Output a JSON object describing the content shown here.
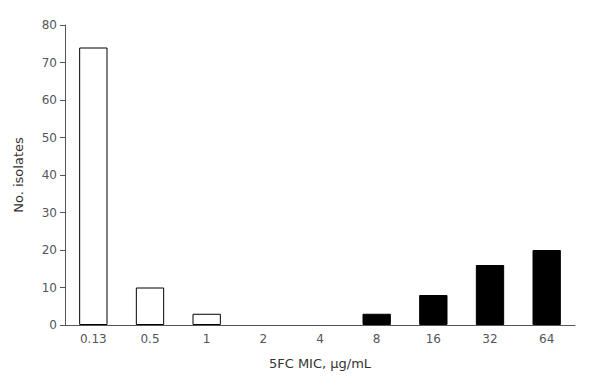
{
  "chart_data": {
    "type": "bar",
    "categories": [
      "0.13",
      "0.5",
      "1",
      "2",
      "4",
      "8",
      "16",
      "32",
      "64"
    ],
    "values": [
      74,
      10,
      3,
      0,
      0,
      3,
      8,
      16,
      20
    ],
    "colors": [
      "white",
      "white",
      "white",
      "white",
      "white",
      "black",
      "black",
      "black",
      "black"
    ],
    "xlabel": "5FC MIC, μg/mL",
    "ylabel": "No. isolates",
    "ylim": [
      0,
      80
    ],
    "yticks": [
      0,
      10,
      20,
      30,
      40,
      50,
      60,
      70,
      80
    ],
    "grid": false
  }
}
